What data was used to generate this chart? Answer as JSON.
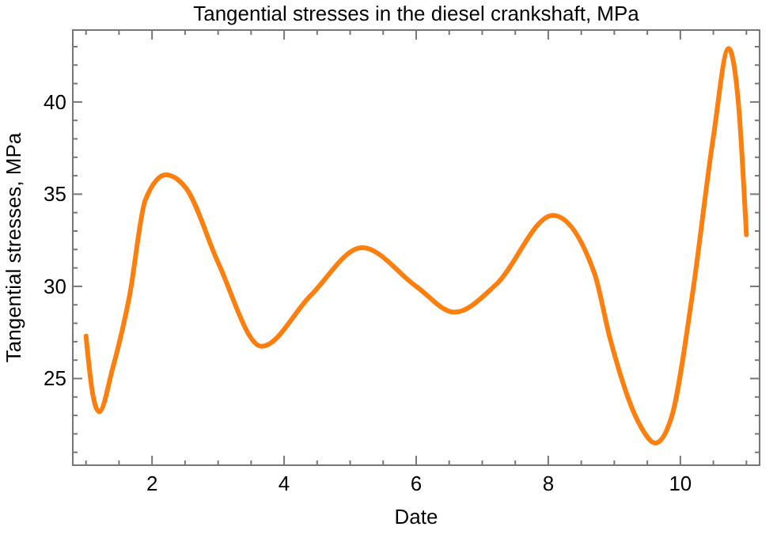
{
  "chart_data": {
    "type": "line",
    "title": "Tangential stresses in the diesel crankshaft, MPa",
    "xlabel": "Date",
    "ylabel": "Tangential stresses, MPa",
    "x": [
      1.0,
      1.1,
      1.2,
      1.4,
      1.66,
      1.9,
      2.21,
      2.52,
      3.0,
      3.66,
      4.4,
      5.18,
      6.0,
      6.58,
      7.21,
      8.07,
      8.7,
      8.93,
      9.4,
      9.62,
      9.87,
      10.18,
      10.5,
      10.73,
      10.88,
      11.0
    ],
    "series": [
      {
        "color": "#ff7f0e",
        "values": [
          27.3,
          24.2,
          23.2,
          25.5,
          29.5,
          34.7,
          36.05,
          35.3,
          31.3,
          26.75,
          29.5,
          32.1,
          30.0,
          28.6,
          30.1,
          33.85,
          30.7,
          27.25,
          22.4,
          21.5,
          22.95,
          29.5,
          38.1,
          42.9,
          39.9,
          32.8
        ]
      }
    ],
    "xlim": [
      0.8,
      11.2
    ],
    "ylim": [
      20.3,
      43.9
    ],
    "xticks": [
      {
        "value": 1,
        "label": null
      },
      {
        "value": 1.5,
        "label": null
      },
      2,
      {
        "value": 2.5,
        "label": null
      },
      {
        "value": 3,
        "label": null
      },
      {
        "value": 3.5,
        "label": null
      },
      4,
      {
        "value": 4.5,
        "label": null
      },
      {
        "value": 5,
        "label": null
      },
      {
        "value": 5.5,
        "label": null
      },
      6,
      {
        "value": 6.5,
        "label": null
      },
      {
        "value": 7,
        "label": null
      },
      {
        "value": 7.5,
        "label": null
      },
      8,
      {
        "value": 8.5,
        "label": null
      },
      {
        "value": 9,
        "label": null
      },
      {
        "value": 9.5,
        "label": null
      },
      10,
      {
        "value": 10.5,
        "label": null
      },
      {
        "value": 11,
        "label": null
      }
    ],
    "yticks": [
      {
        "value": 21,
        "label": null
      },
      {
        "value": 22,
        "label": null
      },
      {
        "value": 23,
        "label": null
      },
      {
        "value": 24,
        "label": null
      },
      25,
      {
        "value": 26,
        "label": null
      },
      {
        "value": 27,
        "label": null
      },
      {
        "value": 28,
        "label": null
      },
      {
        "value": 29,
        "label": null
      },
      30,
      {
        "value": 31,
        "label": null
      },
      {
        "value": 32,
        "label": null
      },
      {
        "value": 33,
        "label": null
      },
      {
        "value": 34,
        "label": null
      },
      35,
      {
        "value": 36,
        "label": null
      },
      {
        "value": 37,
        "label": null
      },
      {
        "value": 38,
        "label": null
      },
      {
        "value": 39,
        "label": null
      },
      40,
      {
        "value": 41,
        "label": null
      },
      {
        "value": 42,
        "label": null
      },
      {
        "value": 43,
        "label": null
      }
    ],
    "grid": false,
    "line_style": "solid",
    "marker": "none"
  }
}
